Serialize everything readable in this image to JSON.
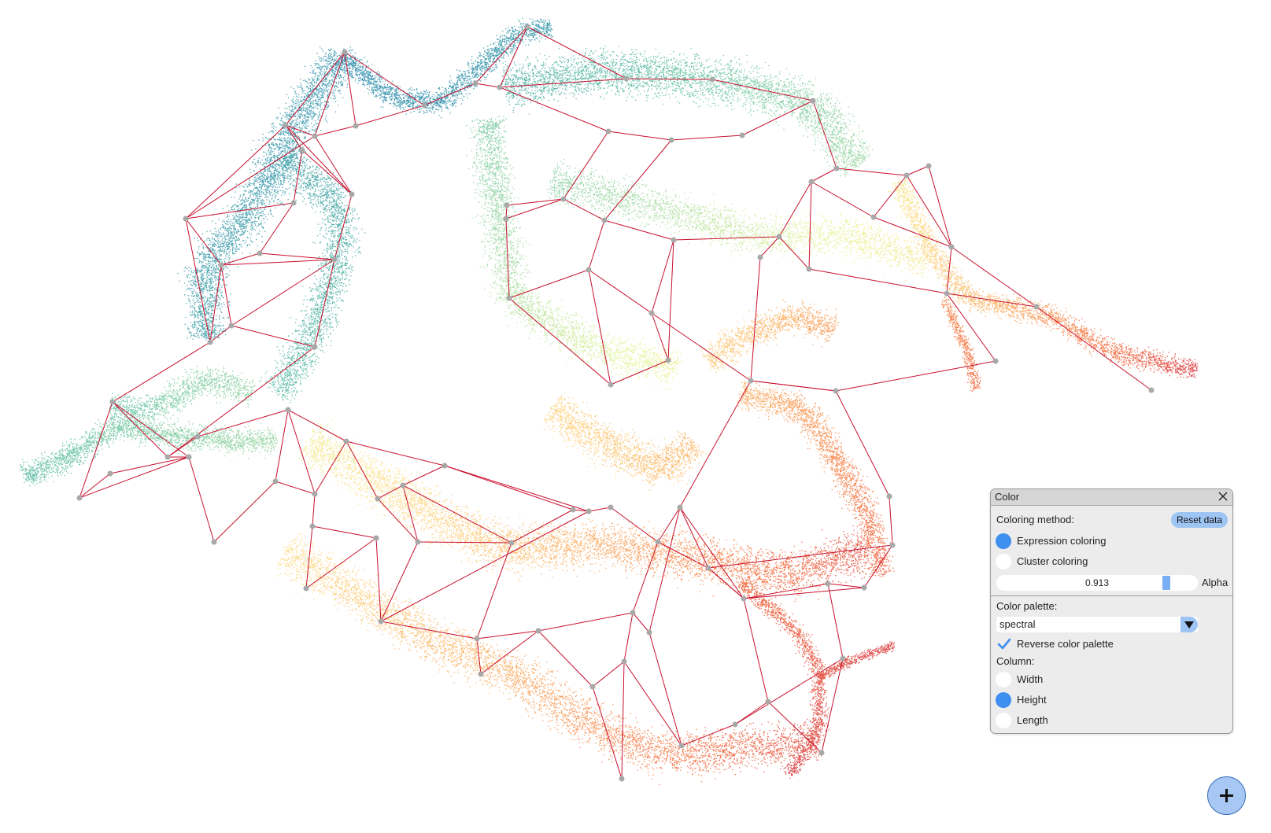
{
  "color_panel": {
    "title": "Color",
    "coloring_method_label": "Coloring method:",
    "reset_label": "Reset data",
    "methods": [
      "Expression coloring",
      "Cluster coloring"
    ],
    "selected_method": "Expression coloring",
    "alpha_value": "0.913",
    "alpha_fraction": 0.913,
    "alpha_label": "Alpha",
    "palette_label": "Color palette:",
    "palette_value": "spectral",
    "reverse_label": "Reverse color palette",
    "reverse_checked": true,
    "column_label": "Column:",
    "columns": [
      "Width",
      "Height",
      "Length"
    ],
    "selected_column": "Height"
  },
  "colors": {
    "edge": "#c8102e",
    "node": "#a8a8a8",
    "accent": "#3f8ff0",
    "button": "#9ec4f3"
  },
  "icons": {
    "close": "close-icon",
    "check": "check-icon",
    "dropdown": "chevron-down-icon",
    "add": "plus-icon"
  }
}
